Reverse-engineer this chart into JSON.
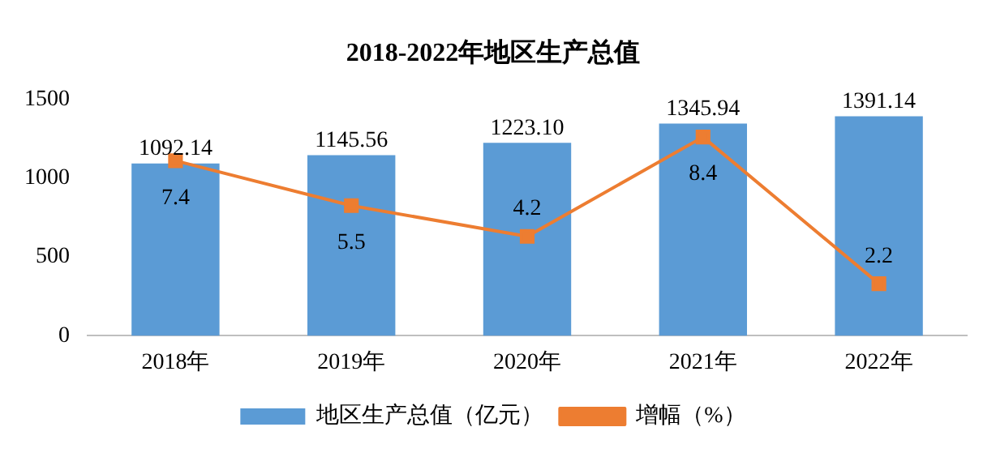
{
  "chart_data": {
    "type": "bar",
    "title": "2018-2022年地区生产总值",
    "categories": [
      "2018年",
      "2019年",
      "2020年",
      "2021年",
      "2022年"
    ],
    "series": [
      {
        "name": "地区生产总值（亿元）",
        "color": "#5b9bd5",
        "values": [
          1092.14,
          1145.56,
          1223.1,
          1345.94,
          1391.14
        ],
        "value_labels": [
          "1092.14",
          "1145.56",
          "1223.10",
          "1345.94",
          "1391.14"
        ]
      },
      {
        "name": "增幅（%）",
        "type": "line",
        "axis": "y2",
        "color": "#ed7d31",
        "marker": "square",
        "values": [
          7.4,
          5.5,
          4.2,
          8.4,
          2.2
        ],
        "value_labels": [
          "7.4",
          "5.5",
          "4.2",
          "8.4",
          "2.2"
        ]
      }
    ],
    "ylim": [
      0,
      1500
    ],
    "yticks": [
      0,
      500,
      1000,
      1500
    ],
    "grid": false,
    "legend": "bottom"
  }
}
